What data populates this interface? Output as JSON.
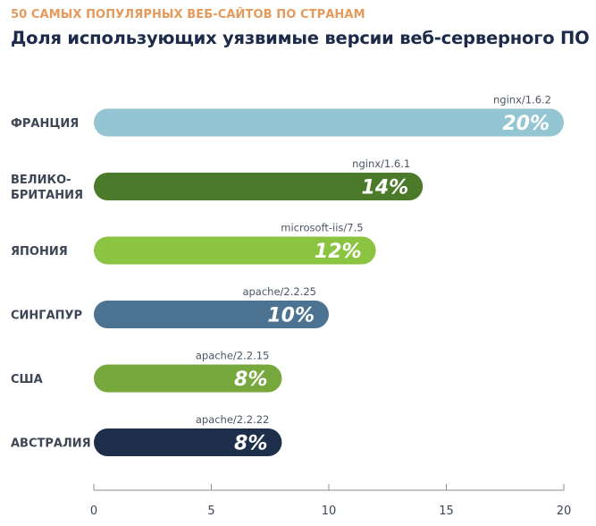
{
  "header": {
    "subtitle": "50 САМЫХ ПОПУЛЯРНЫХ ВЕБ-САЙТОВ ПО СТРАНАМ",
    "title": "Доля использующих уязвимые версии веб-серверного ПО"
  },
  "chart_data": {
    "type": "bar",
    "orientation": "horizontal",
    "categories": [
      [
        "ФРАНЦИЯ"
      ],
      [
        "ВЕЛИКО-",
        "БРИТАНИЯ"
      ],
      [
        "ЯПОНИЯ"
      ],
      [
        "СИНГАПУР"
      ],
      [
        "США"
      ],
      [
        "АВСТРАЛИЯ"
      ]
    ],
    "values": [
      20,
      14,
      12,
      10,
      8,
      8
    ],
    "value_labels": [
      "20%",
      "14%",
      "12%",
      "10%",
      "8%",
      "8%"
    ],
    "server_labels": [
      "nginx/1.6.2",
      "nginx/1.6.1",
      "microsoft-iis/7.5",
      "apache/2.2.25",
      "apache/2.2.15",
      "apache/2.2.22"
    ],
    "colors": [
      "#93c5d3",
      "#4b7a2a",
      "#8bc440",
      "#4c7391",
      "#77a83d",
      "#1e2f4b"
    ],
    "xlim": [
      0,
      20
    ],
    "xticks": [
      0,
      5,
      10,
      15,
      20
    ],
    "xlabel": "",
    "ylabel": "",
    "grid": false
  }
}
